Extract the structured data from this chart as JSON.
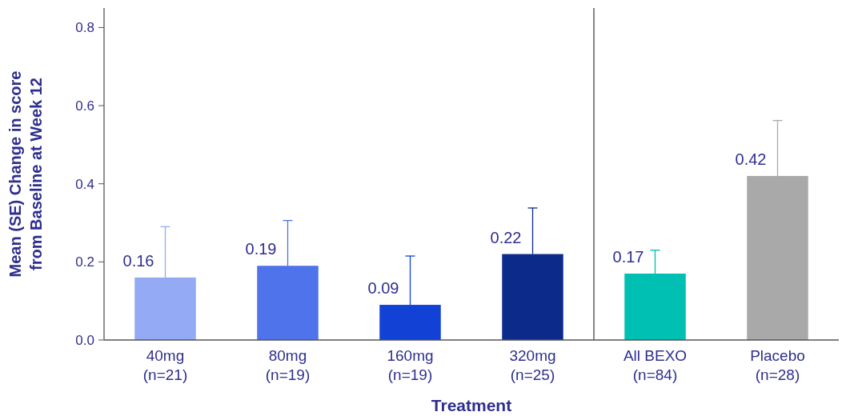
{
  "chart_data": {
    "type": "bar",
    "xlabel": "Treatment",
    "ylabel": "Mean (SE) Change in score\nfrom Baseline at Week 12",
    "categories": [
      "40mg\n(n=21)",
      "80mg\n(n=19)",
      "160mg\n(n=19)",
      "320mg\n(n=25)",
      "All BEXO\n(n=84)",
      "Placebo\n(n=28)"
    ],
    "values": [
      0.16,
      0.19,
      0.09,
      0.22,
      0.17,
      0.42
    ],
    "colors": [
      "#94aaf5",
      "#4e73ea",
      "#1241d6",
      "#0c2a8a",
      "#00bfb3",
      "#a9a9a9"
    ],
    "errors": [
      [
        0.16,
        0.29
      ],
      [
        0.19,
        0.306
      ],
      [
        0.09,
        0.215
      ],
      [
        0.22,
        0.338
      ],
      [
        0.17,
        0.23
      ],
      [
        0.42,
        0.562
      ]
    ],
    "data_labels": true,
    "ylim": [
      0,
      0.85
    ],
    "yticks": [
      {
        "value": 0,
        "label": "0.0"
      },
      0.2,
      0.4,
      0.6,
      0.8
    ],
    "grid": false
  }
}
